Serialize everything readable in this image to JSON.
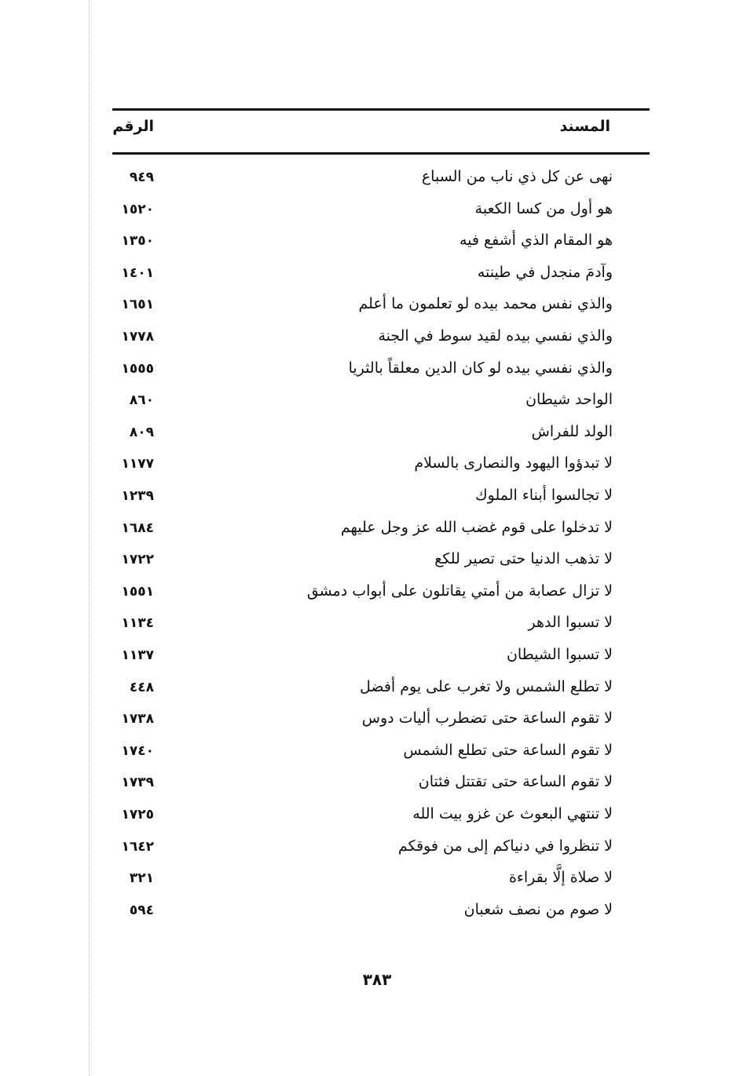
{
  "header": {
    "text_col": "المسند",
    "number_col": "الرقم"
  },
  "rows": [
    {
      "text": "نهى عن كل ذي ناب من السباع",
      "number": "٩٤٩"
    },
    {
      "text": "هو أول من كسا الكعبة",
      "number": "١٥٢٠"
    },
    {
      "text": "هو المقام الذي أشفع فيه",
      "number": "١٣٥٠"
    },
    {
      "text": "وآدمَ منجدل في طينته",
      "number": "١٤٠١"
    },
    {
      "text": "والذي نفس محمد بيده لو تعلمون ما أعلم",
      "number": "١٦٥١"
    },
    {
      "text": "والذي نفسي بيده لقيد سوط في الجنة",
      "number": "١٧٧٨"
    },
    {
      "text": "والذي نفسي بيده لو كان الدين معلقاً بالثريا",
      "number": "١٥٥٥"
    },
    {
      "text": "الواحد شيطان",
      "number": "٨٦٠"
    },
    {
      "text": "الولد للفراش",
      "number": "٨٠٩"
    },
    {
      "text": "لا تبدؤوا اليهود والنصارى بالسلام",
      "number": "١١٧٧"
    },
    {
      "text": "لا تجالسوا أبناء الملوك",
      "number": "١٢٣٩"
    },
    {
      "text": "لا تدخلوا على قوم غضب الله عز وجل عليهم",
      "number": "١٦٨٤"
    },
    {
      "text": "لا تذهب الدنيا حتى تصير للكع",
      "number": "١٧٢٢"
    },
    {
      "text": "لا تزال عصابة من أمتي يقاتلون على أبواب دمشق",
      "number": "١٥٥١"
    },
    {
      "text": "لا تسبوا الدهر",
      "number": "١١٣٤"
    },
    {
      "text": "لا تسبوا الشيطان",
      "number": "١١٣٧"
    },
    {
      "text": "لا تطلع الشمس ولا تغرب على يوم أفضل",
      "number": "٤٤٨"
    },
    {
      "text": "لا تقوم الساعة حتى تضطرب أليات دوس",
      "number": "١٧٣٨"
    },
    {
      "text": "لا تقوم الساعة حتى تطلع الشمس",
      "number": "١٧٤٠"
    },
    {
      "text": "لا تقوم الساعة حتى تقتتل فئتان",
      "number": "١٧٣٩"
    },
    {
      "text": "لا تنتهي البعوث عن غزو بيت الله",
      "number": "١٧٢٥"
    },
    {
      "text": "لا تنظروا في دنياكم إلى من فوقكم",
      "number": "١٦٤٢"
    },
    {
      "text": "لا صلاة إلَّا بقراءة",
      "number": "٣٢١"
    },
    {
      "text": "لا صوم من نصف شعبان",
      "number": "٥٩٤"
    }
  ],
  "page_number": "٣٨٣"
}
